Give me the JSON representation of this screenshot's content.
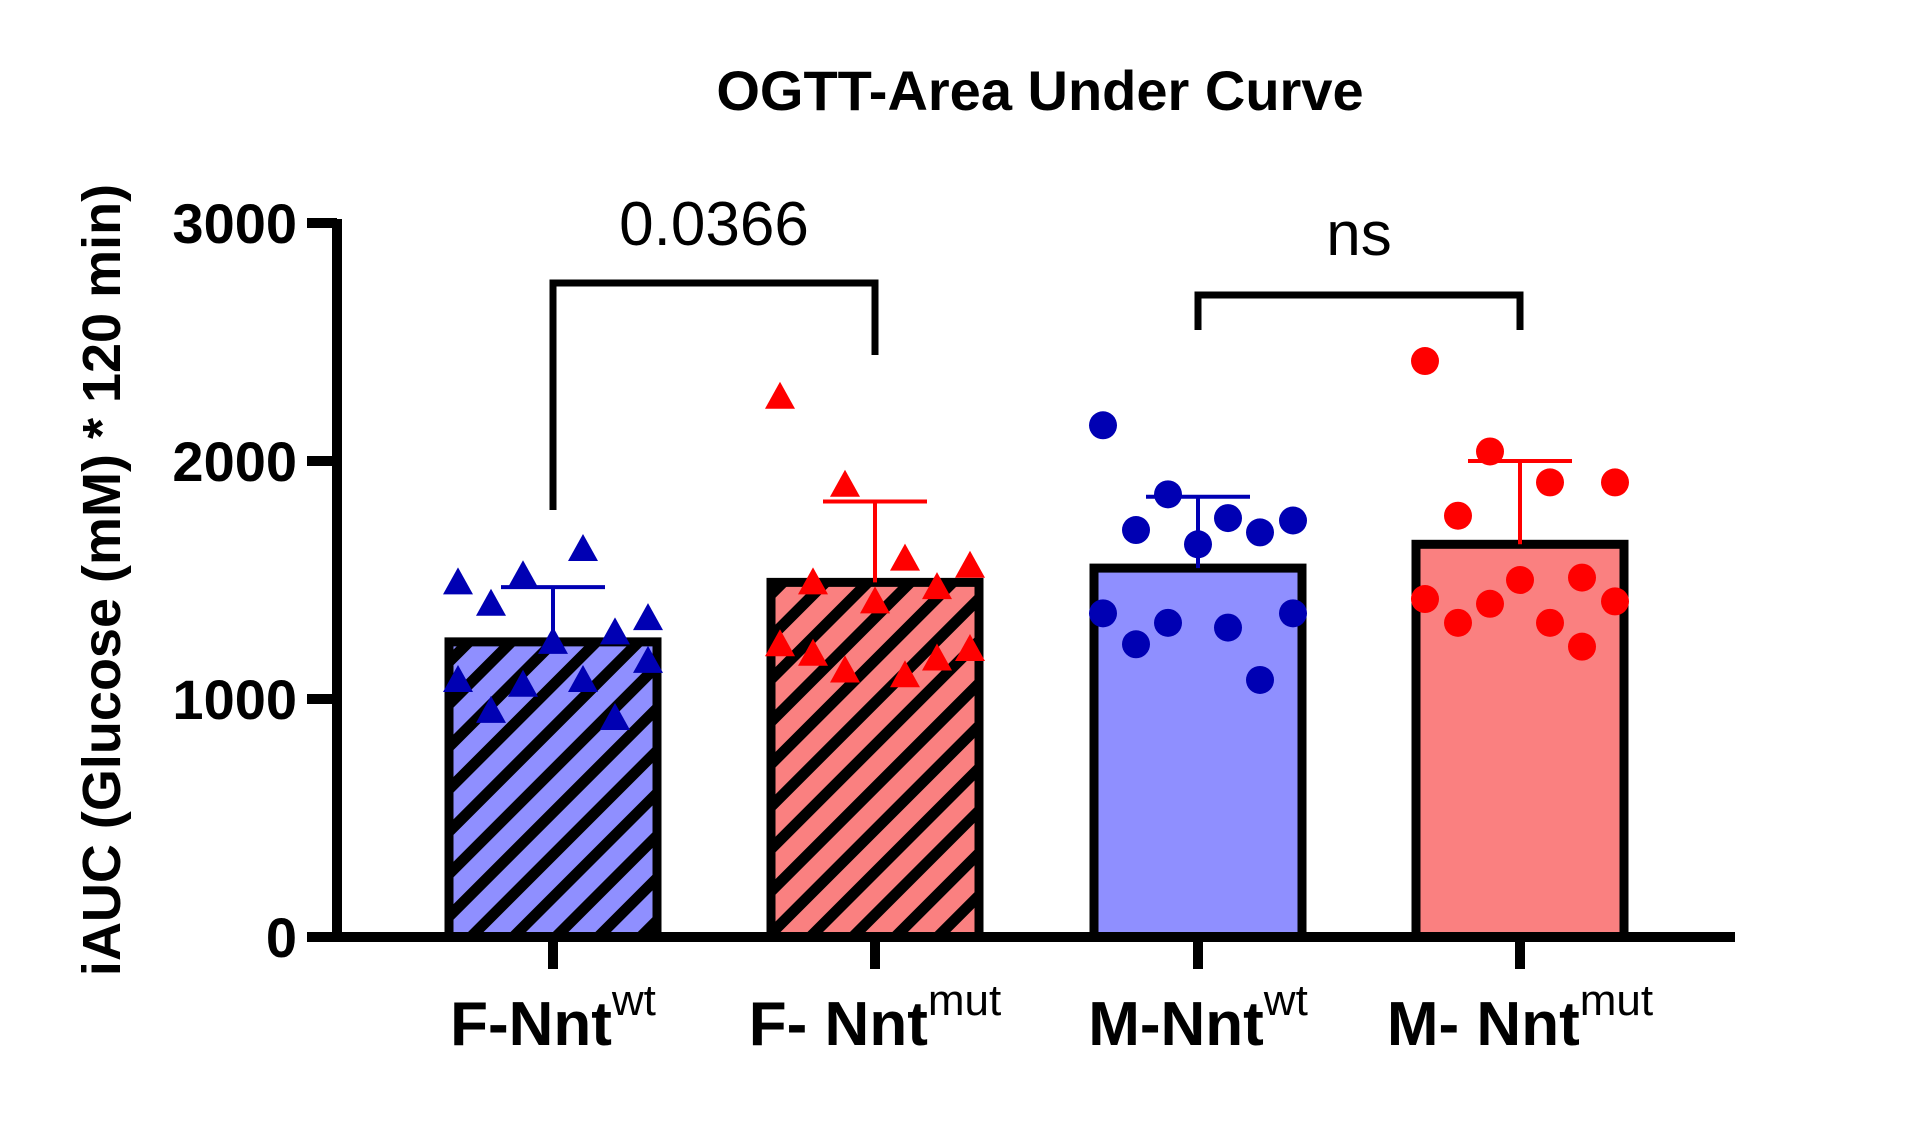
{
  "chart_data": {
    "type": "bar",
    "title": "OGTT-Area Under Curve",
    "ylabel": "iAUC (Glucose (mM) * 120 min)",
    "ylim": [
      0,
      3000
    ],
    "yticks": [
      0,
      1000,
      2000,
      3000
    ],
    "ytick_labels": [
      "0",
      "1000",
      "2000",
      "3000"
    ],
    "categories": [
      {
        "main": "F-Nnt",
        "sup": "wt"
      },
      {
        "main": "F- Nnt",
        "sup": "mut"
      },
      {
        "main": "M-Nnt",
        "sup": "wt"
      },
      {
        "main": "M- Nnt",
        "sup": "mut"
      }
    ],
    "series": [
      {
        "mean": 1240,
        "error_upper": 1470,
        "fill": "#8f8fff",
        "point_color": "#0000b3",
        "hatched": true,
        "marker": "triangle",
        "points": [
          1490,
          1520,
          1630,
          1340,
          1400,
          1280,
          1240,
          1080,
          1160,
          1060,
          1080,
          950,
          920
        ]
      },
      {
        "mean": 1490,
        "error_upper": 1830,
        "fill": "#fa8080",
        "point_color": "#ff0000",
        "hatched": true,
        "marker": "triangle",
        "points": [
          2270,
          1900,
          1590,
          1560,
          1490,
          1470,
          1410,
          1230,
          1210,
          1120,
          1100,
          1190,
          1170
        ]
      },
      {
        "mean": 1550,
        "error_upper": 1850,
        "fill": "#8f8fff",
        "point_color": "#0000b3",
        "hatched": false,
        "marker": "circle",
        "points": [
          2150,
          1860,
          1760,
          1750,
          1710,
          1700,
          1650,
          1360,
          1360,
          1320,
          1300,
          1230,
          1080
        ]
      },
      {
        "mean": 1650,
        "error_upper": 2000,
        "fill": "#fa8080",
        "point_color": "#ff0000",
        "hatched": false,
        "marker": "circle",
        "points": [
          2420,
          2040,
          1910,
          1910,
          1770,
          1510,
          1500,
          1420,
          1410,
          1400,
          1320,
          1320,
          1220
        ]
      }
    ],
    "comparisons": [
      {
        "from": 0,
        "to": 1,
        "label": "0.0366"
      },
      {
        "from": 2,
        "to": 3,
        "label": "ns"
      }
    ],
    "grid": false,
    "legend": "none"
  }
}
